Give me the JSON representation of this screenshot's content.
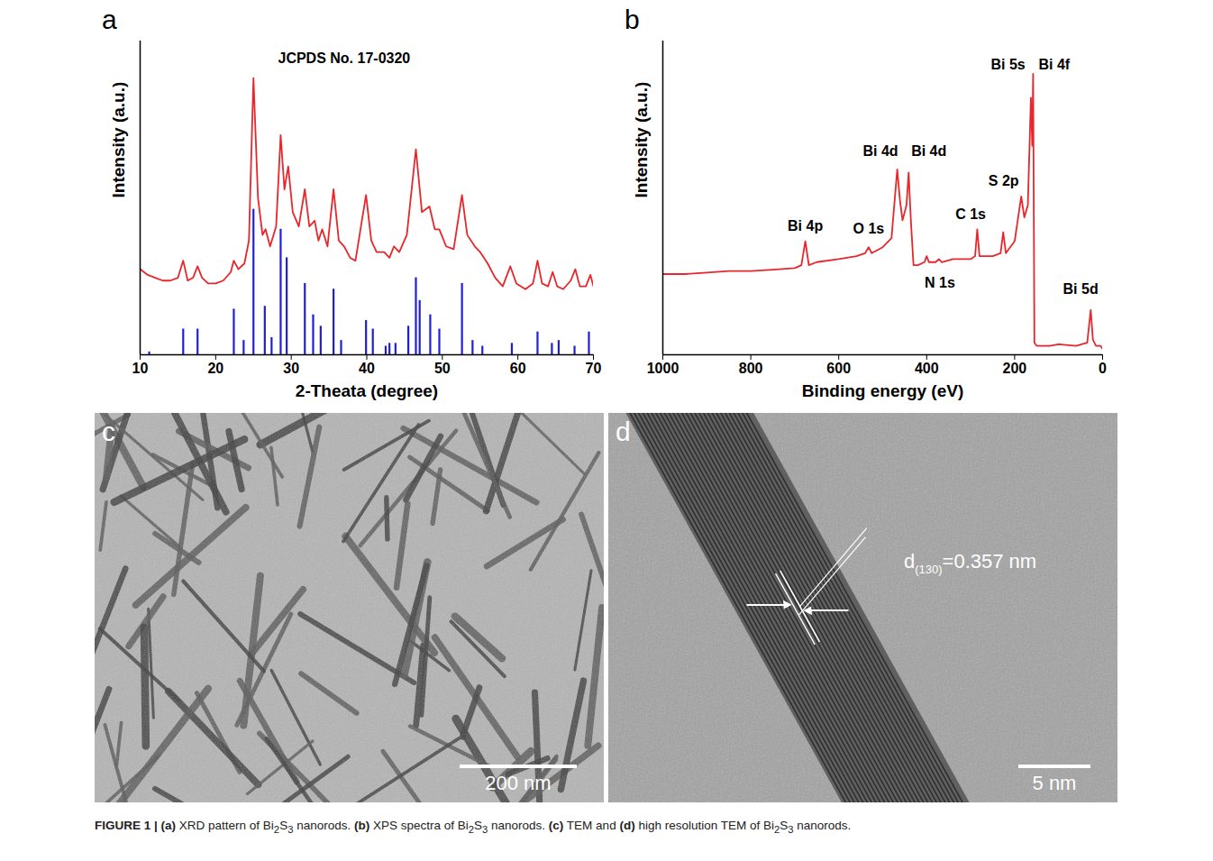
{
  "chart_data": [
    {
      "panel": "a",
      "type": "line",
      "xlabel": "2-Theata (degree)",
      "ylabel": "Intensity (a.u.)",
      "xlim": [
        10,
        70
      ],
      "xticks": [
        10,
        20,
        30,
        40,
        50,
        60,
        70
      ],
      "ylim": [
        0,
        110
      ],
      "tick_labels": "x",
      "series": [
        {
          "type": "line",
          "color": "#e8262b",
          "x": [
            10,
            11,
            12,
            13,
            14,
            15,
            15.7,
            16.3,
            17,
            17.6,
            18.2,
            19,
            20,
            21,
            22,
            22.4,
            23,
            23.8,
            24.4,
            25,
            25.6,
            26.2,
            26.6,
            27.2,
            28,
            28.6,
            29.1,
            29.6,
            30.2,
            31,
            31.8,
            32.4,
            33.1,
            33.6,
            34.1,
            34.8,
            35.6,
            36.3,
            37,
            37.8,
            38.5,
            39.9,
            40.6,
            41.3,
            42.3,
            43,
            43.6,
            44.3,
            45.3,
            46.5,
            47.3,
            48.3,
            49,
            49.6,
            50.5,
            51.5,
            52.6,
            53.3,
            54.3,
            55,
            56,
            57,
            58,
            59,
            59.8,
            61,
            62,
            62.6,
            63.2,
            64,
            64.6,
            65.2,
            66,
            67,
            67.6,
            68.2,
            69,
            69.6,
            70
          ],
          "values": [
            30,
            28,
            27,
            26,
            26,
            27,
            33,
            26,
            27,
            31,
            27,
            25,
            25,
            26,
            29,
            33,
            30,
            32,
            40,
            97,
            55,
            42,
            44,
            38,
            45,
            77,
            58,
            66,
            50,
            45,
            58,
            45,
            47,
            40,
            44,
            38,
            58,
            40,
            38,
            34,
            33,
            56,
            40,
            36,
            36,
            34,
            38,
            36,
            42,
            72,
            50,
            52,
            44,
            44,
            38,
            37,
            56,
            42,
            38,
            36,
            32,
            27,
            24,
            31,
            25,
            23,
            25,
            33,
            25,
            24,
            29,
            24,
            23,
            26,
            30,
            24,
            24,
            28,
            24
          ]
        },
        {
          "type": "stem",
          "color": "#1f1fd6",
          "x": [
            11.2,
            15.7,
            17.6,
            22.4,
            23.7,
            25,
            26.5,
            27.4,
            28.6,
            29.4,
            31.8,
            32.9,
            33.9,
            35.6,
            36.6,
            39.9,
            40.8,
            42.5,
            43,
            43.8,
            45.5,
            46.5,
            47,
            48.4,
            49.6,
            52.6,
            54,
            55.3,
            59.2,
            62.6,
            64.5,
            65.4,
            67.5,
            69.4
          ],
          "values": [
            1,
            9,
            9,
            16,
            5,
            51,
            17,
            6,
            44,
            34,
            25,
            14,
            10,
            23,
            5,
            12,
            9,
            3,
            4,
            4,
            10,
            27,
            19,
            14,
            9,
            25,
            5,
            3,
            4,
            8,
            4,
            5,
            3,
            8
          ]
        }
      ],
      "annotations": [
        {
          "text": "JCPDS No. 17-0320",
          "x": 37,
          "y": 104
        }
      ]
    },
    {
      "panel": "b",
      "type": "line",
      "xlabel": "Binding energy (eV)",
      "ylabel": "Intensity (a.u.)",
      "xlim": [
        1000,
        0
      ],
      "xticks": [
        1000,
        800,
        600,
        400,
        200,
        0
      ],
      "ylim": [
        0,
        105
      ],
      "tick_labels": "x",
      "series": [
        {
          "type": "line",
          "color": "#e8262b",
          "x": [
            1000,
            950,
            900,
            850,
            800,
            750,
            700,
            685,
            676,
            668,
            650,
            600,
            560,
            540,
            532,
            525,
            500,
            480,
            467,
            461,
            455,
            446,
            441,
            436,
            430,
            420,
            405,
            400,
            395,
            380,
            372,
            366,
            340,
            300,
            290,
            285,
            280,
            250,
            232,
            226,
            220,
            200,
            185,
            178,
            170,
            163,
            160,
            158,
            155,
            150,
            120,
            100,
            60,
            35,
            27,
            22,
            15,
            5,
            0
          ],
          "values": [
            27,
            27,
            27.5,
            28,
            28,
            28.5,
            29,
            30,
            38,
            30,
            31,
            32,
            33,
            34,
            36,
            34,
            36,
            39,
            62,
            52,
            45,
            50,
            61,
            45,
            30,
            30,
            31,
            33,
            31,
            31,
            32,
            31,
            32,
            32,
            33,
            42,
            33,
            33,
            34,
            41,
            34,
            38,
            53,
            46,
            50,
            86,
            70,
            94,
            4,
            3,
            3,
            3.5,
            3,
            4,
            15,
            5,
            3,
            3,
            2
          ]
        }
      ],
      "annotations": [
        {
          "text": "Bi 4p",
          "x": 676,
          "y": 43
        },
        {
          "text": "O 1s",
          "x": 532,
          "y": 42
        },
        {
          "text": "Bi 4d",
          "x": 505,
          "y": 68
        },
        {
          "text": "Bi 4d",
          "x": 395,
          "y": 68
        },
        {
          "text": "N 1s",
          "x": 370,
          "y": 24
        },
        {
          "text": "C 1s",
          "x": 300,
          "y": 47
        },
        {
          "text": "S 2p",
          "x": 225,
          "y": 58
        },
        {
          "text": "Bi 5s",
          "x": 215,
          "y": 97
        },
        {
          "text": "Bi 4f",
          "x": 110,
          "y": 97
        },
        {
          "text": "Bi 5d",
          "x": 50,
          "y": 22
        }
      ]
    }
  ],
  "images": [
    {
      "panel": "c",
      "scale_bar": "200 nm"
    },
    {
      "panel": "d",
      "scale_bar": "5 nm",
      "label": {
        "text": "d",
        "sub": "(130)",
        "after": "=0.357 nm"
      }
    }
  ],
  "caption": {
    "label": "FIGURE 1 |",
    "text": "(a) XRD pattern of Bi2S3 nanorods. (b) XPS spectra of Bi2S3 nanorods. (c) TEM and (d) high resolution TEM of Bi2S3 nanorods."
  }
}
